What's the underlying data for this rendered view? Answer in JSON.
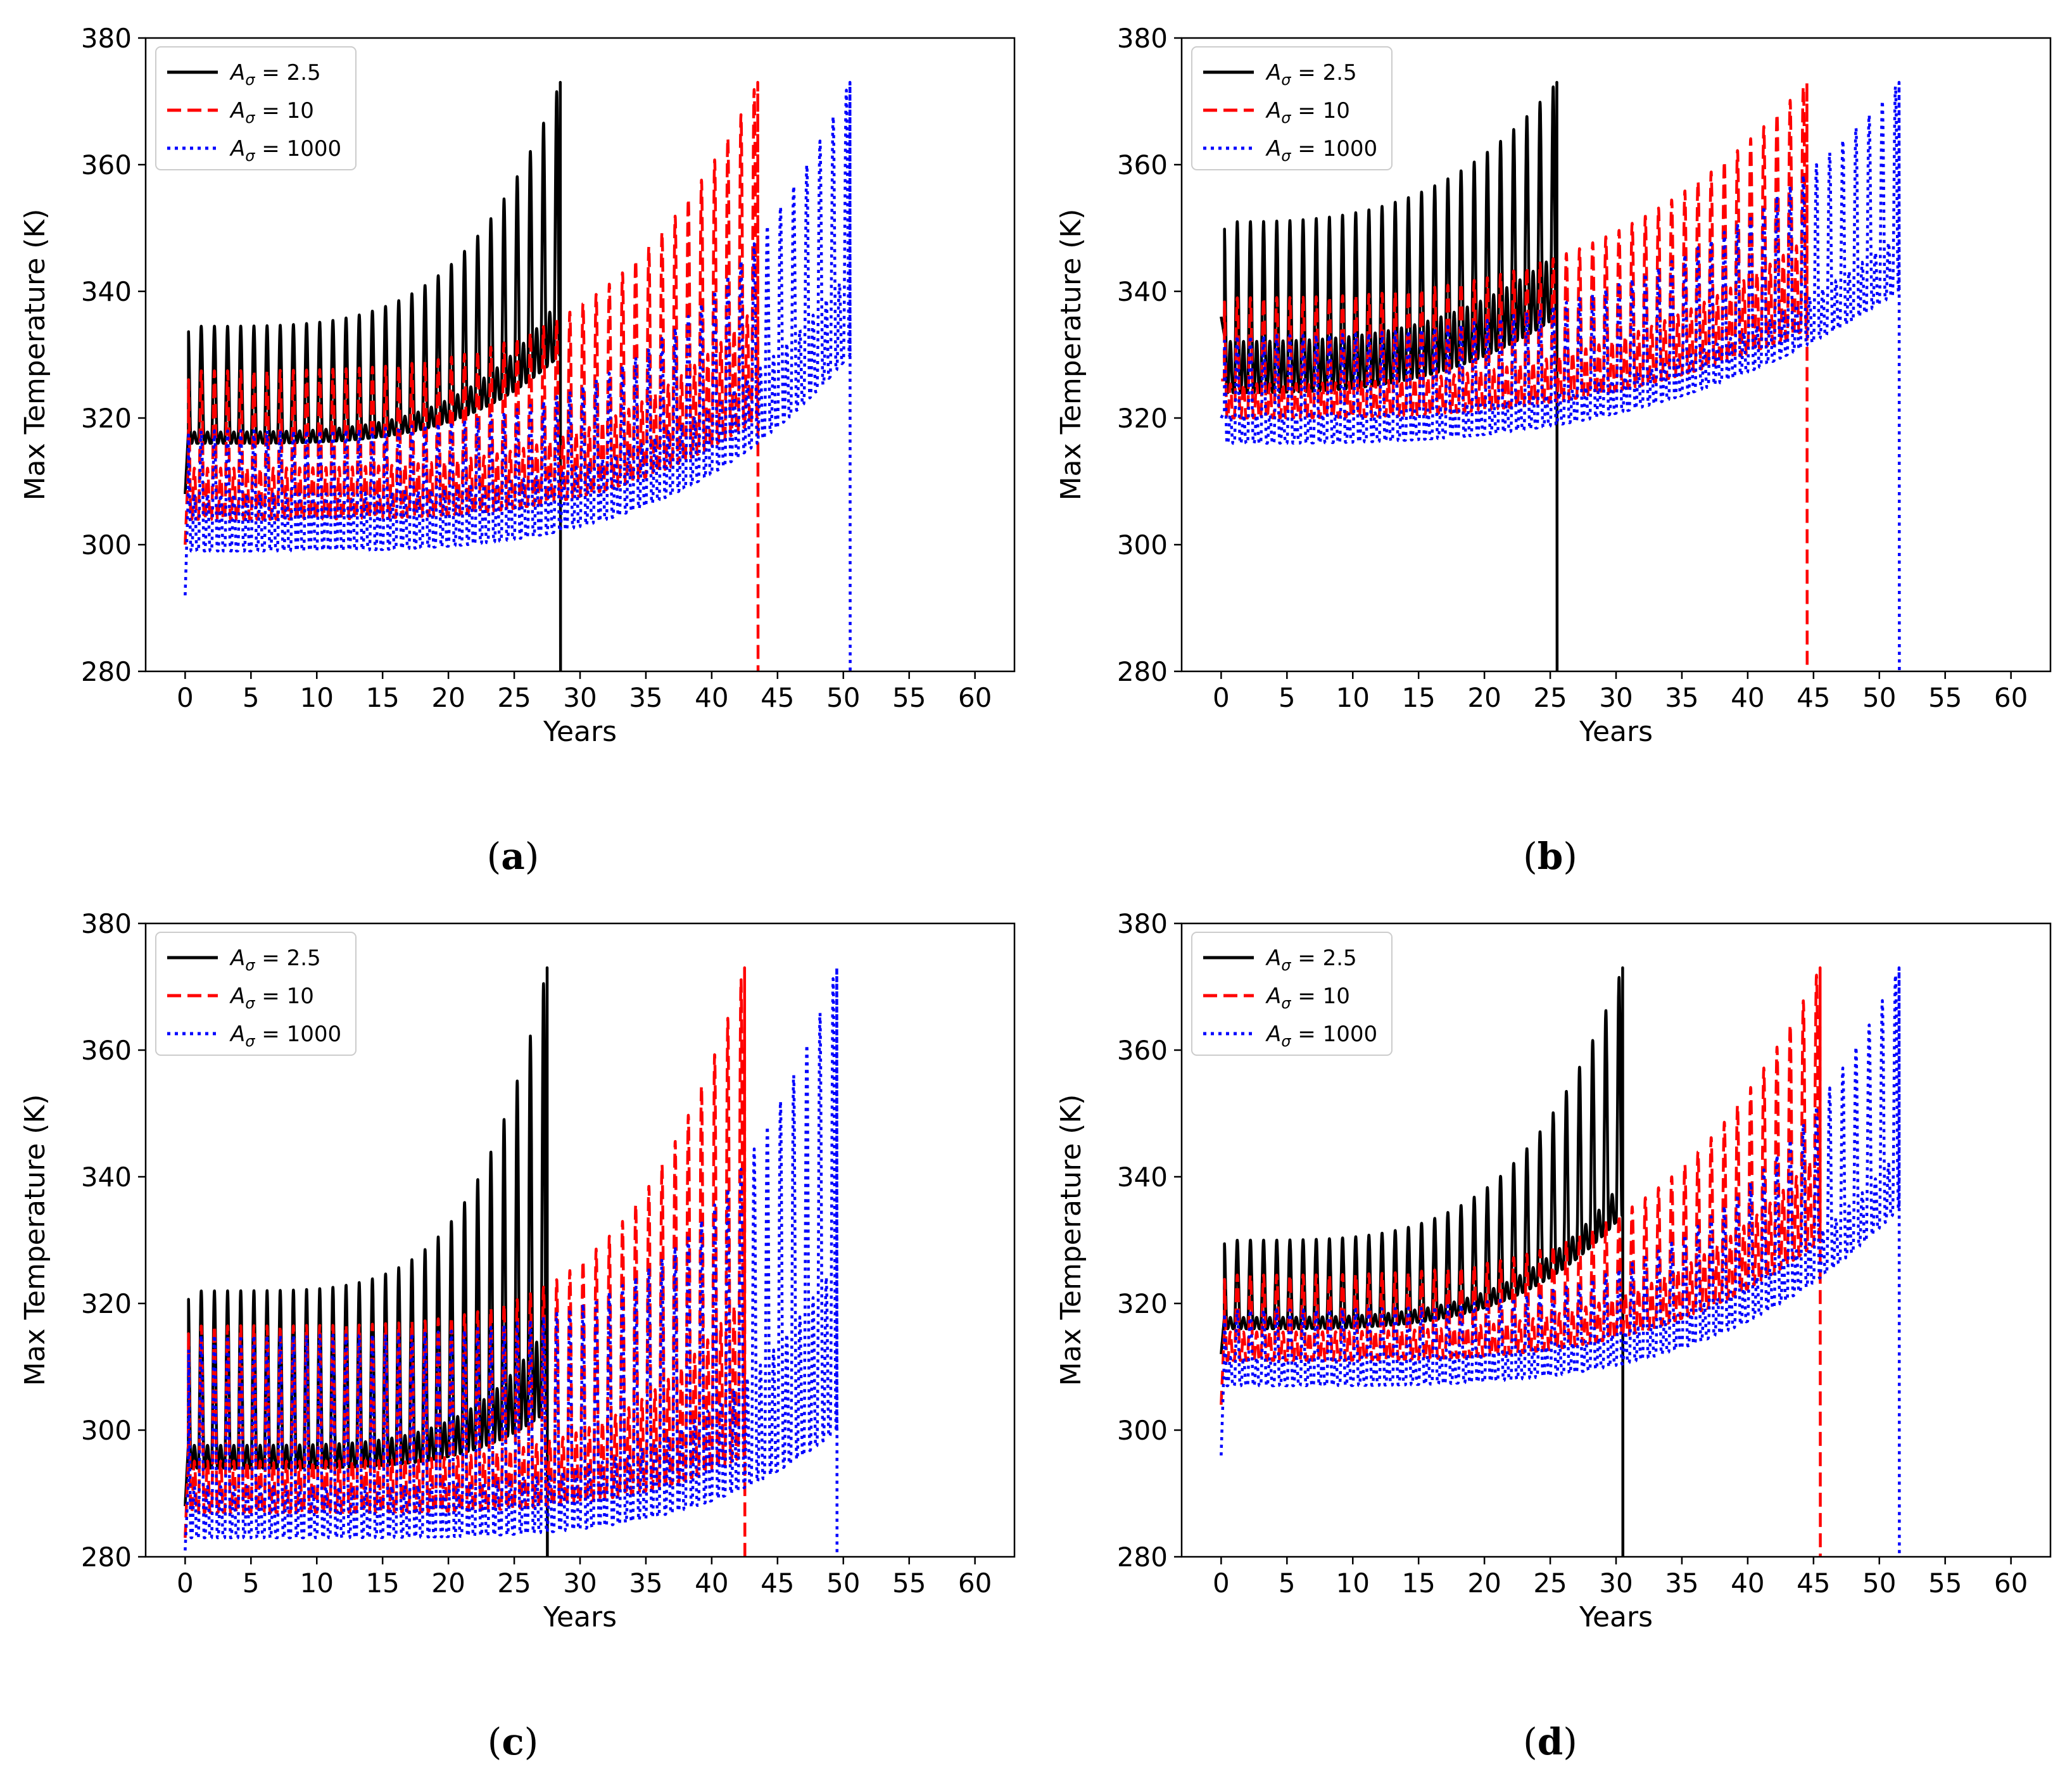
{
  "colors": {
    "black": "#000000",
    "red": "#ff0000",
    "blue": "#0000ff"
  },
  "chart_data": [
    {
      "type": "line",
      "panel": "(a)",
      "panel_letter": "a",
      "xlabel": "Years",
      "ylabel": "Max Temperature (K)",
      "xlim": [
        -3,
        63
      ],
      "ylim": [
        280,
        380
      ],
      "xticks": [
        "0",
        "5",
        "10",
        "15",
        "20",
        "25",
        "30",
        "35",
        "40",
        "45",
        "50",
        "55",
        "60"
      ],
      "yticks": [
        "280",
        "300",
        "320",
        "340",
        "360",
        "380"
      ],
      "legend_position": "top-left",
      "series": [
        {
          "name": "A_σ = 2.5",
          "label_base": "A",
          "label_sub": "σ",
          "label_val": " = 2.5",
          "style": "solid",
          "color": "#000000",
          "end_year": 28.5,
          "t0": 308,
          "upper_start": 334.5,
          "upper_end": 373,
          "lower_start": 316,
          "lower_end": 330,
          "mid_start": 318,
          "mid_end": 340,
          "n_cycles": 28,
          "k": 4
        },
        {
          "name": "A_σ = 10",
          "label_base": "A",
          "label_sub": "σ",
          "label_val": " = 10",
          "style": "dashed",
          "color": "#ff0000",
          "end_year": 43.5,
          "t0": 300,
          "upper_start": 327.5,
          "upper_end": 373,
          "lower_start": 304,
          "lower_end": 320,
          "mid_start": 313,
          "mid_end": 340,
          "n_cycles": 43,
          "k": 4
        },
        {
          "name": "A_σ = 1000",
          "label_base": "A",
          "label_sub": "σ",
          "label_val": " = 1000",
          "style": "dotted",
          "color": "#0000ff",
          "end_year": 50.5,
          "t0": 292,
          "upper_start": 318,
          "upper_end": 373,
          "lower_start": 299,
          "lower_end": 330,
          "mid_start": 309,
          "mid_end": 345,
          "n_cycles": 50,
          "k": 4
        }
      ]
    },
    {
      "type": "line",
      "panel": "(b)",
      "panel_letter": "b",
      "xlabel": "Years",
      "ylabel": "Max Temperature (K)",
      "xlim": [
        -3,
        63
      ],
      "ylim": [
        280,
        380
      ],
      "xticks": [
        "0",
        "5",
        "10",
        "15",
        "20",
        "25",
        "30",
        "35",
        "40",
        "45",
        "50",
        "55",
        "60"
      ],
      "yticks": [
        "280",
        "300",
        "320",
        "340",
        "360",
        "380"
      ],
      "legend_position": "top-left",
      "series": [
        {
          "name": "A_σ = 2.5",
          "label_base": "A",
          "label_sub": "σ",
          "label_val": " = 2.5",
          "style": "solid",
          "color": "#000000",
          "end_year": 25.5,
          "t0": 336,
          "upper_start": 351,
          "upper_end": 373,
          "lower_start": 324,
          "lower_end": 336,
          "mid_start": 333,
          "mid_end": 347,
          "n_cycles": 25,
          "k": 3
        },
        {
          "name": "A_σ = 10",
          "label_base": "A",
          "label_sub": "σ",
          "label_val": " = 10",
          "style": "dashed",
          "color": "#ff0000",
          "end_year": 44.5,
          "t0": 326,
          "upper_start": 339,
          "upper_end": 373,
          "lower_start": 320,
          "lower_end": 334,
          "mid_start": 326,
          "mid_end": 350,
          "n_cycles": 44,
          "k": 3
        },
        {
          "name": "A_σ = 1000",
          "label_base": "A",
          "label_sub": "σ",
          "label_val": " = 1000",
          "style": "dotted",
          "color": "#0000ff",
          "end_year": 51.5,
          "t0": 320,
          "upper_start": 333,
          "upper_end": 373,
          "lower_start": 316,
          "lower_end": 340,
          "mid_start": 321,
          "mid_end": 350,
          "n_cycles": 51,
          "k": 3
        }
      ]
    },
    {
      "type": "line",
      "panel": "(c)",
      "panel_letter": "c",
      "xlabel": "Years",
      "ylabel": "Max Temperature (K)",
      "xlim": [
        -3,
        63
      ],
      "ylim": [
        280,
        380
      ],
      "xticks": [
        "0",
        "5",
        "10",
        "15",
        "20",
        "25",
        "30",
        "35",
        "40",
        "45",
        "50",
        "55",
        "60"
      ],
      "yticks": [
        "280",
        "300",
        "320",
        "340",
        "360",
        "380"
      ],
      "legend_position": "top-left",
      "series": [
        {
          "name": "A_σ = 2.5",
          "label_base": "A",
          "label_sub": "σ",
          "label_val": " = 2.5",
          "style": "solid",
          "color": "#000000",
          "end_year": 27.5,
          "t0": 288,
          "upper_start": 322,
          "upper_end": 373,
          "lower_start": 294,
          "lower_end": 303,
          "mid_start": 298,
          "mid_end": 318,
          "n_cycles": 27,
          "k": 5
        },
        {
          "name": "A_σ = 10",
          "label_base": "A",
          "label_sub": "σ",
          "label_val": " = 10",
          "style": "dashed",
          "color": "#ff0000",
          "end_year": 42.5,
          "t0": 283,
          "upper_start": 316.5,
          "upper_end": 373,
          "lower_start": 287,
          "lower_end": 296,
          "mid_start": 296,
          "mid_end": 325,
          "n_cycles": 42,
          "k": 5
        },
        {
          "name": "A_σ = 1000",
          "label_base": "A",
          "label_sub": "σ",
          "label_val": " = 1000",
          "style": "dotted",
          "color": "#0000ff",
          "end_year": 49.5,
          "t0": 281,
          "upper_start": 315,
          "upper_end": 373,
          "lower_start": 283,
          "lower_end": 300,
          "mid_start": 292,
          "mid_end": 330,
          "n_cycles": 49,
          "k": 5
        }
      ]
    },
    {
      "type": "line",
      "panel": "(d)",
      "panel_letter": "d",
      "xlabel": "Years",
      "ylabel": "Max Temperature (K)",
      "xlim": [
        -3,
        63
      ],
      "ylim": [
        280,
        380
      ],
      "xticks": [
        "0",
        "5",
        "10",
        "15",
        "20",
        "25",
        "30",
        "35",
        "40",
        "45",
        "50",
        "55",
        "60"
      ],
      "yticks": [
        "280",
        "300",
        "320",
        "340",
        "360",
        "380"
      ],
      "legend_position": "top-left",
      "series": [
        {
          "name": "A_σ = 2.5",
          "label_base": "A",
          "label_sub": "σ",
          "label_val": " = 2.5",
          "style": "solid",
          "color": "#000000",
          "end_year": 30.5,
          "t0": 312,
          "upper_start": 330,
          "upper_end": 373,
          "lower_start": 316,
          "lower_end": 334,
          "mid_start": 318,
          "mid_end": 340,
          "n_cycles": 30,
          "k": 4
        },
        {
          "name": "A_σ = 10",
          "label_base": "A",
          "label_sub": "σ",
          "label_val": " = 10",
          "style": "dashed",
          "color": "#ff0000",
          "end_year": 45.5,
          "t0": 304,
          "upper_start": 324.5,
          "upper_end": 373,
          "lower_start": 311,
          "lower_end": 330,
          "mid_start": 316,
          "mid_end": 346,
          "n_cycles": 45,
          "k": 4
        },
        {
          "name": "A_σ = 1000",
          "label_base": "A",
          "label_sub": "σ",
          "label_val": " = 1000",
          "style": "dotted",
          "color": "#0000ff",
          "end_year": 51.5,
          "t0": 296,
          "upper_start": 319,
          "upper_end": 373,
          "lower_start": 307,
          "lower_end": 335,
          "mid_start": 312,
          "mid_end": 345,
          "n_cycles": 51,
          "k": 4
        }
      ]
    }
  ]
}
